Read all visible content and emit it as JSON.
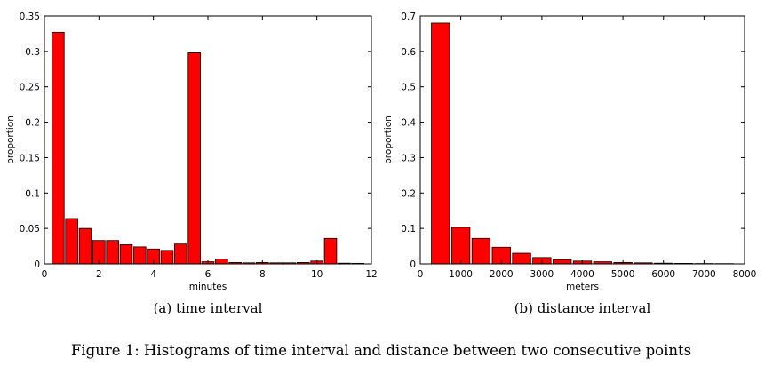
{
  "figure_caption": "Figure 1: Histograms of time interval and distance between two consecutive points",
  "chart_data": [
    {
      "type": "bar",
      "subcaption": "(a) time interval",
      "xlabel": "minutes",
      "ylabel": "proportion",
      "xlim": [
        0,
        12
      ],
      "ylim": [
        0,
        0.35
      ],
      "xticks": [
        0,
        2,
        4,
        6,
        8,
        10,
        12
      ],
      "yticks": [
        0,
        0.05,
        0.1,
        0.15,
        0.2,
        0.25,
        0.3,
        0.35
      ],
      "bar_width": 0.5,
      "x": [
        0.5,
        1.0,
        1.5,
        2.0,
        2.5,
        3.0,
        3.5,
        4.0,
        4.5,
        5.0,
        5.5,
        6.0,
        6.5,
        7.0,
        7.5,
        8.0,
        8.5,
        9.0,
        9.5,
        10.0,
        10.5,
        11.0,
        11.5
      ],
      "values": [
        0.327,
        0.064,
        0.05,
        0.033,
        0.033,
        0.027,
        0.024,
        0.021,
        0.019,
        0.028,
        0.298,
        0.003,
        0.007,
        0.002,
        0.0015,
        0.002,
        0.0015,
        0.0015,
        0.002,
        0.004,
        0.036,
        0.001,
        0.0008
      ],
      "color": "#ff0000"
    },
    {
      "type": "bar",
      "subcaption": "(b) distance interval",
      "xlabel": "meters",
      "ylabel": "proportion",
      "xlim": [
        0,
        8000
      ],
      "ylim": [
        0,
        0.7
      ],
      "xticks": [
        0,
        1000,
        2000,
        3000,
        4000,
        5000,
        6000,
        7000,
        8000
      ],
      "yticks": [
        0,
        0.1,
        0.2,
        0.3,
        0.4,
        0.5,
        0.6,
        0.7
      ],
      "bar_width": 500,
      "x": [
        500,
        1000,
        1500,
        2000,
        2500,
        3000,
        3500,
        4000,
        4500,
        5000,
        5500,
        6000,
        6500,
        7000,
        7500
      ],
      "values": [
        0.68,
        0.103,
        0.072,
        0.047,
        0.03,
        0.018,
        0.012,
        0.008,
        0.006,
        0.004,
        0.003,
        0.002,
        0.0015,
        0.001,
        0.0008
      ],
      "color": "#ff0000"
    }
  ]
}
